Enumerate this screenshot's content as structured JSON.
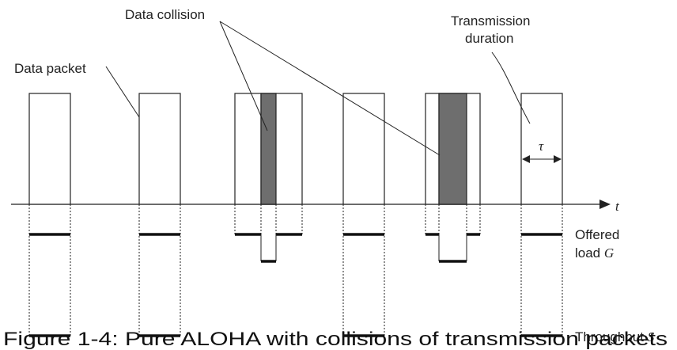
{
  "labels": {
    "data_collision": "Data collision",
    "transmission_line1": "Transmission",
    "transmission_line2": "duration",
    "data_packet": "Data packet",
    "tau": "τ",
    "t_axis": "t",
    "offered_line1": "Offered",
    "offered_line2": "load ",
    "offered_var": "G",
    "throughput": "Throughput ",
    "throughput_var": "S",
    "caption": "Figure 1-4: Pure ALOHA with collisions of transmission packets"
  },
  "colors": {
    "line": "#222222",
    "collision_fill": "#6e6e6e",
    "background": "#ffffff"
  }
}
